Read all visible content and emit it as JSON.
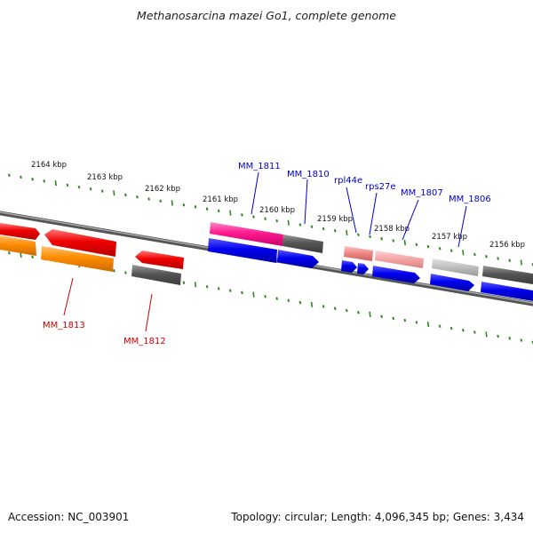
{
  "title": "Methanosarcina mazei Go1, complete genome",
  "footer": {
    "accession": "Accession: NC_003901",
    "summary": "Topology: circular; Length: 4,096,345 bp; Genes: 3,434"
  },
  "colors": {
    "backbone": "#6f6f6f",
    "tick": "#2e8b1e",
    "kbp_label": "#111111",
    "gene_label_forward": "#0000cc",
    "gene_label_reverse": "#cc0000"
  },
  "scale": {
    "unit": "kbp",
    "labels": [
      "2164 kbp",
      "2163 kbp",
      "2162 kbp",
      "2161 kbp",
      "2160 kbp",
      "2159 kbp",
      "2158 kbp",
      "2157 kbp",
      "2156 kbp"
    ]
  },
  "gene_labels": [
    "MM_1811",
    "MM_1810",
    "rpl44e",
    "rps27e",
    "MM_1807",
    "MM_1806",
    "MM_1813",
    "MM_1812"
  ]
}
